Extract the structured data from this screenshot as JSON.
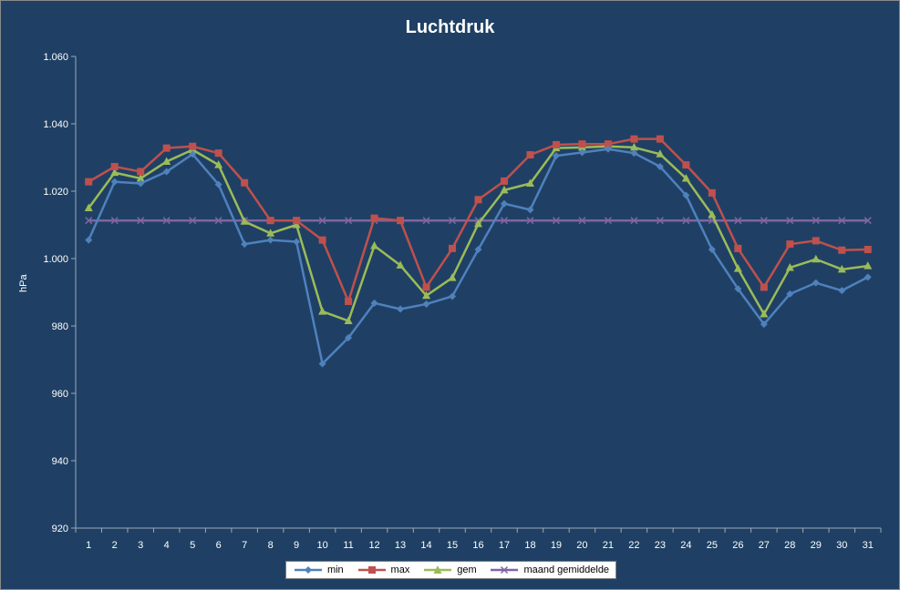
{
  "chart_data": {
    "type": "line",
    "title": "Luchtdruk",
    "xlabel": "",
    "ylabel": "hPa",
    "x": [
      1,
      2,
      3,
      4,
      5,
      6,
      7,
      8,
      9,
      10,
      11,
      12,
      13,
      14,
      15,
      16,
      17,
      18,
      19,
      20,
      21,
      22,
      23,
      24,
      25,
      26,
      27,
      28,
      29,
      30,
      31
    ],
    "ylim": [
      920,
      1060
    ],
    "yticks": [
      920,
      940,
      960,
      980,
      1000,
      1020,
      1040,
      1060
    ],
    "ytick_labels": [
      "920",
      "940",
      "960",
      "980",
      "1.000",
      "1.020",
      "1.040",
      "1.060"
    ],
    "grid": false,
    "legend_position": "bottom",
    "series": [
      {
        "name": "min",
        "color": "#4f81bd",
        "marker": "diamond",
        "values": [
          1005.5,
          1022.8,
          1022.3,
          1025.8,
          1031.0,
          1022.0,
          1004.3,
          1005.5,
          1005.0,
          968.8,
          976.5,
          986.8,
          985.0,
          986.5,
          988.8,
          1002.7,
          1016.3,
          1014.5,
          1030.5,
          1031.5,
          1032.5,
          1031.3,
          1027.3,
          1018.8,
          1002.7,
          991.0,
          980.5,
          989.5,
          992.8,
          990.5,
          994.5
        ]
      },
      {
        "name": "max",
        "color": "#c0504d",
        "marker": "square",
        "values": [
          1022.8,
          1027.3,
          1025.8,
          1032.8,
          1033.3,
          1031.3,
          1022.5,
          1011.3,
          1011.3,
          1005.5,
          987.3,
          1012.0,
          1011.3,
          991.5,
          1003.0,
          1017.5,
          1023.0,
          1030.8,
          1033.8,
          1034.0,
          1034.0,
          1035.5,
          1035.5,
          1027.8,
          1019.5,
          1003.0,
          991.5,
          1004.3,
          1005.3,
          1002.5,
          1002.7
        ]
      },
      {
        "name": "gem",
        "color": "#9bbb59",
        "marker": "triangle",
        "values": [
          1015.0,
          1025.5,
          1023.8,
          1028.8,
          1032.3,
          1027.8,
          1011.0,
          1007.5,
          1010.0,
          984.3,
          981.5,
          1003.8,
          998.0,
          989.0,
          994.3,
          1010.3,
          1020.3,
          1022.3,
          1032.8,
          1033.0,
          1033.3,
          1033.0,
          1031.0,
          1023.8,
          1013.0,
          997.0,
          983.5,
          997.3,
          999.8,
          996.8,
          997.8
        ]
      },
      {
        "name": "maand gemiddelde",
        "color": "#8064a2",
        "marker": "x",
        "values": [
          1011.3,
          1011.3,
          1011.3,
          1011.3,
          1011.3,
          1011.3,
          1011.3,
          1011.3,
          1011.3,
          1011.3,
          1011.3,
          1011.3,
          1011.3,
          1011.3,
          1011.3,
          1011.3,
          1011.3,
          1011.3,
          1011.3,
          1011.3,
          1011.3,
          1011.3,
          1011.3,
          1011.3,
          1011.3,
          1011.3,
          1011.3,
          1011.3,
          1011.3,
          1011.3,
          1011.3
        ]
      }
    ]
  }
}
